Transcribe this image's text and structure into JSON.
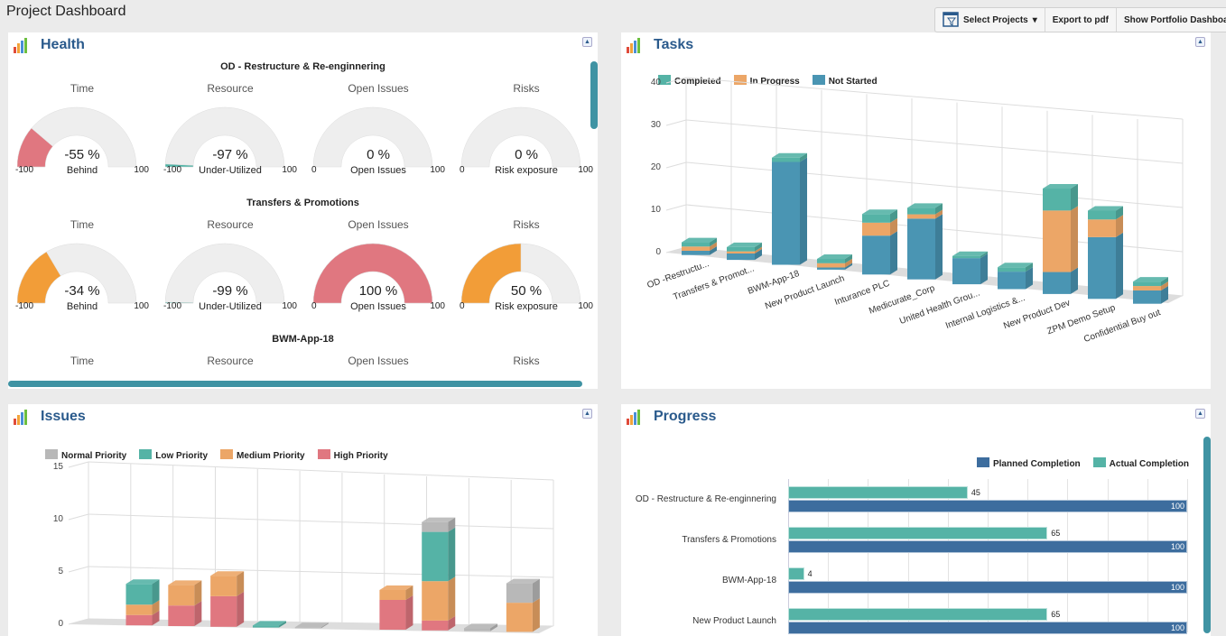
{
  "page_title": "Project Dashboard",
  "toolbar": {
    "select_projects": "Select Projects",
    "export_pdf": "Export to pdf",
    "show_portfolio": "Show Portfolio Dashboard",
    "select_icon": "filter-list-icon",
    "dropdown_icon": "caret-down-icon"
  },
  "colors": {
    "red": "#e07780",
    "orange": "#f29d38",
    "teal": "#4fb3a5",
    "blue": "#4a95b3",
    "gauge_bg": "#eeeeee",
    "title": "#2a5a8c",
    "planned": "#3d6d9e",
    "actual": "#55b3a6",
    "gray": "#b8b8b8",
    "tasks_ip": "#eca667"
  },
  "health": {
    "title": "Health",
    "projects": [
      {
        "name": "OD - Restructure & Re-enginnering",
        "gauges": [
          {
            "label": "Time",
            "value": -55,
            "text": "-55 %",
            "sub": "Behind",
            "min": -100,
            "max": 100,
            "color": "#e07780"
          },
          {
            "label": "Resource",
            "value": -97,
            "text": "-97 %",
            "sub": "Under-Utilized",
            "min": -100,
            "max": 100,
            "color": "#4fb3a5"
          },
          {
            "label": "Open Issues",
            "value": 0,
            "text": "0 %",
            "sub": "Open Issues",
            "min": 0,
            "max": 100,
            "color": "#e07780"
          },
          {
            "label": "Risks",
            "value": 0,
            "text": "0 %",
            "sub": "Risk exposure",
            "min": 0,
            "max": 100,
            "color": "#f29d38"
          }
        ]
      },
      {
        "name": "Transfers & Promotions",
        "gauges": [
          {
            "label": "Time",
            "value": -34,
            "text": "-34 %",
            "sub": "Behind",
            "min": -100,
            "max": 100,
            "color": "#f29d38"
          },
          {
            "label": "Resource",
            "value": -99,
            "text": "-99 %",
            "sub": "Under-Utilized",
            "min": -100,
            "max": 100,
            "color": "#4fb3a5"
          },
          {
            "label": "Open Issues",
            "value": 100,
            "text": "100 %",
            "sub": "Open Issues",
            "min": 0,
            "max": 100,
            "color": "#e07780"
          },
          {
            "label": "Risks",
            "value": 50,
            "text": "50 %",
            "sub": "Risk exposure",
            "min": 0,
            "max": 100,
            "color": "#f29d38"
          }
        ]
      },
      {
        "name": "BWM-App-18",
        "labels": [
          "Time",
          "Resource",
          "Open Issues",
          "Risks"
        ]
      }
    ]
  },
  "chart_data": [
    {
      "type": "bar",
      "title": "Tasks",
      "stacked": true,
      "three_d": true,
      "legend": "top-left",
      "categories": [
        "OD -Restructu...",
        "Transfers & Promot...",
        "BWM-App-18",
        "New Product Launch",
        "Inturance PLC",
        "Medicurate_Corp",
        "United Health Grou...",
        "Internal Logistics &...",
        "New Product Dev",
        "ZPM Demo Setup",
        "Confidential Buy out"
      ],
      "series": [
        {
          "name": "Not Started",
          "color": "#4a95b3",
          "values": [
            1,
            1.5,
            24,
            0.5,
            9,
            14,
            6,
            4,
            5,
            14,
            3
          ]
        },
        {
          "name": "In Progress",
          "color": "#eca667",
          "values": [
            1,
            0.5,
            0,
            1,
            3,
            1,
            0,
            0,
            14,
            4,
            1
          ]
        },
        {
          "name": "Completed",
          "color": "#55b3a6",
          "values": [
            1,
            1,
            1,
            1,
            2,
            1.5,
            0.5,
            1,
            5,
            2,
            1
          ]
        }
      ],
      "legend_order": [
        "Completed",
        "In Progress",
        "Not Started"
      ],
      "yticks": [
        0,
        10,
        20,
        30,
        40
      ],
      "ylim": [
        0,
        40
      ],
      "grid": true
    },
    {
      "type": "bar",
      "title": "Issues",
      "stacked": true,
      "three_d": true,
      "legend": "top-left",
      "categories": [
        "",
        "",
        "",
        "",
        "",
        "",
        "",
        "",
        "",
        "",
        ""
      ],
      "series": [
        {
          "name": "High Priority",
          "color": "#e07780",
          "values": [
            0,
            1,
            2,
            3,
            0,
            0,
            0,
            3,
            1,
            0,
            0
          ]
        },
        {
          "name": "Medium Priority",
          "color": "#eca667",
          "values": [
            0,
            1,
            2,
            2,
            0,
            0,
            0,
            1,
            4,
            0,
            3
          ]
        },
        {
          "name": "Low Priority",
          "color": "#55b3a6",
          "values": [
            0,
            2,
            0,
            0,
            0.2,
            0,
            0,
            0,
            5,
            0,
            0
          ]
        },
        {
          "name": "Normal Priority",
          "color": "#b8b8b8",
          "values": [
            0,
            0,
            0,
            0,
            0,
            0.1,
            0,
            0,
            1,
            0.3,
            2
          ]
        }
      ],
      "legend_order": [
        "Normal Priority",
        "Low Priority",
        "Medium Priority",
        "High Priority"
      ],
      "yticks": [
        0,
        5,
        10,
        15
      ],
      "ylim": [
        0,
        15
      ],
      "grid": true
    },
    {
      "type": "bar",
      "orientation": "horizontal",
      "title": "Progress",
      "legend": "top-right",
      "categories": [
        "OD - Restructure & Re-enginnering",
        "Transfers & Promotions",
        "BWM-App-18",
        "New Product Launch"
      ],
      "series": [
        {
          "name": "Planned Completion",
          "color": "#3d6d9e",
          "values": [
            100,
            100,
            100,
            100
          ]
        },
        {
          "name": "Actual Completion",
          "color": "#55b3a6",
          "values": [
            45,
            65,
            4,
            65
          ]
        }
      ],
      "xlim": [
        0,
        100
      ],
      "grid": true
    }
  ]
}
